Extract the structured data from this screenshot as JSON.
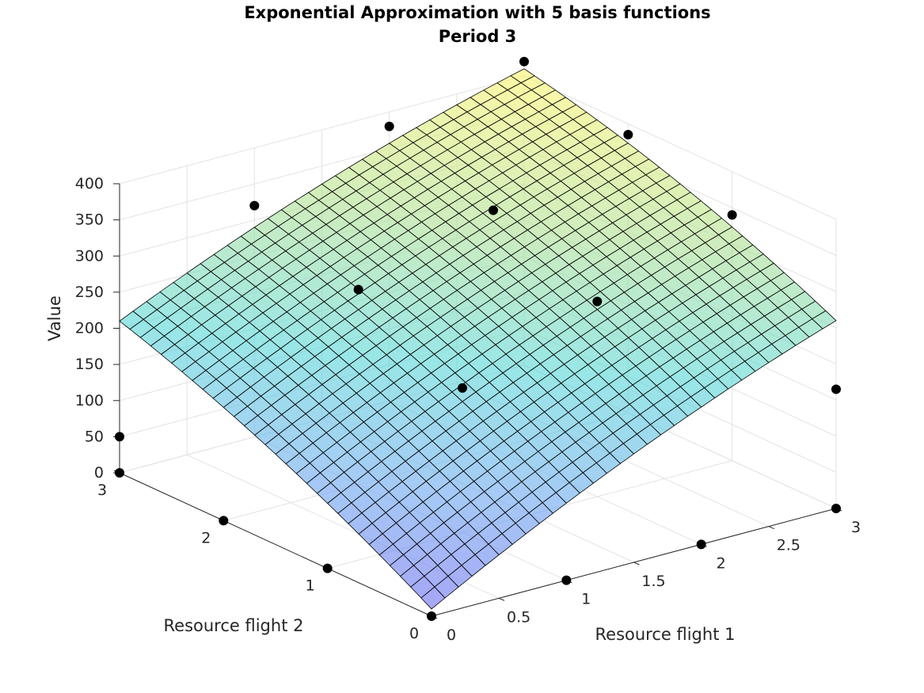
{
  "chart_data": {
    "type": "surface",
    "title": "Exponential Approximation with 5 basis functions",
    "subtitle": "Period 3",
    "xlabel": "Resource flight 1",
    "ylabel": "Resource flight 2",
    "zlabel": "Value",
    "xlim": [
      0,
      3
    ],
    "ylim": [
      0,
      3
    ],
    "zlim": [
      0,
      400
    ],
    "x_ticks": [
      "0",
      "0.5",
      "1",
      "1.5",
      "2",
      "2.5",
      "3"
    ],
    "y_ticks": [
      "0",
      "1",
      "2",
      "3"
    ],
    "z_ticks": [
      "0",
      "50",
      "100",
      "150",
      "200",
      "250",
      "300",
      "350",
      "400"
    ],
    "grid": true,
    "colormap": "parula",
    "surface": {
      "corners": [
        {
          "x": 0,
          "y": 0,
          "z": 10
        },
        {
          "x": 3,
          "y": 0,
          "z": 260
        },
        {
          "x": 0,
          "y": 3,
          "z": 210
        },
        {
          "x": 3,
          "y": 3,
          "z": 410
        }
      ],
      "mesh_divisions": 30
    },
    "points": [
      {
        "x": 0,
        "y": 0,
        "z": 0
      },
      {
        "x": 1,
        "y": 0,
        "z": 0
      },
      {
        "x": 2,
        "y": 0,
        "z": 0
      },
      {
        "x": 3,
        "y": 0,
        "z": 0
      },
      {
        "x": 0,
        "y": 1,
        "z": 0
      },
      {
        "x": 0,
        "y": 2,
        "z": 0
      },
      {
        "x": 0,
        "y": 3,
        "z": 0
      },
      {
        "x": 3,
        "y": 0,
        "z": 165
      },
      {
        "x": 0,
        "y": 3,
        "z": 50
      },
      {
        "x": 1,
        "y": 1,
        "z": 200
      },
      {
        "x": 2,
        "y": 1,
        "z": 270
      },
      {
        "x": 3,
        "y": 1,
        "z": 340
      },
      {
        "x": 1,
        "y": 2,
        "z": 270
      },
      {
        "x": 2,
        "y": 2,
        "z": 330
      },
      {
        "x": 3,
        "y": 2,
        "z": 385
      },
      {
        "x": 1,
        "y": 3,
        "z": 320
      },
      {
        "x": 2,
        "y": 3,
        "z": 380
      },
      {
        "x": 3,
        "y": 3,
        "z": 420
      }
    ],
    "colors": {
      "point": "#000000",
      "mesh_edge": "#000000",
      "axis": "#262626",
      "grid": "#e3e3e3"
    }
  }
}
